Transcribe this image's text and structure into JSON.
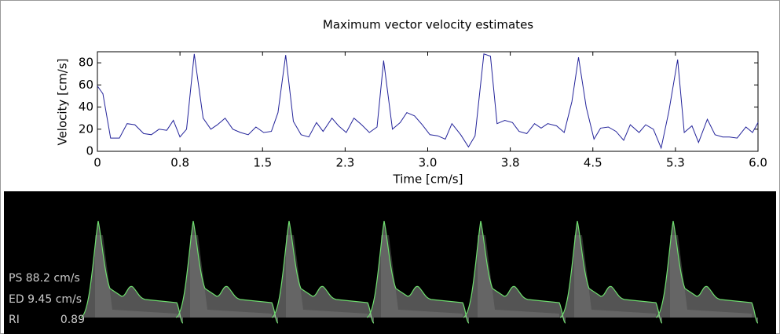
{
  "chart_data": {
    "type": "line",
    "title": "Maximum vector velocity estimates",
    "xlabel": "Time [cm/s]",
    "ylabel": "Velocity [cm/s]",
    "color": "#23239a",
    "x": [
      0,
      0.05,
      0.12,
      0.2,
      0.27,
      0.34,
      0.42,
      0.49,
      0.56,
      0.63,
      0.69,
      0.75,
      0.81,
      0.88,
      0.96,
      1.03,
      1.09,
      1.16,
      1.23,
      1.3,
      1.37,
      1.44,
      1.51,
      1.58,
      1.64,
      1.71,
      1.78,
      1.85,
      1.92,
      1.99,
      2.05,
      2.13,
      2.19,
      2.26,
      2.33,
      2.4,
      2.47,
      2.54,
      2.6,
      2.68,
      2.75,
      2.81,
      2.88,
      2.95,
      3.02,
      3.09,
      3.16,
      3.22,
      3.3,
      3.37,
      3.43,
      3.51,
      3.57,
      3.63,
      3.7,
      3.77,
      3.83,
      3.9,
      3.97,
      4.03,
      4.09,
      4.17,
      4.24,
      4.31,
      4.37,
      4.44,
      4.51,
      4.57,
      4.64,
      4.71,
      4.78,
      4.84,
      4.92,
      4.98,
      5.05,
      5.12,
      5.19,
      5.27,
      5.33,
      5.4,
      5.46,
      5.54,
      5.61,
      5.68,
      5.74,
      5.81,
      5.89,
      5.95,
      6.0
    ],
    "values": [
      59,
      52,
      12,
      12,
      25,
      24,
      16,
      15,
      20,
      19,
      28,
      13,
      20,
      88,
      30,
      20,
      24,
      30,
      20,
      17,
      15,
      22,
      17,
      18,
      35,
      87,
      27,
      15,
      13,
      26,
      18,
      30,
      23,
      17,
      30,
      24,
      17,
      22,
      82,
      20,
      26,
      35,
      32,
      24,
      15,
      14,
      11,
      25,
      15,
      4,
      14,
      88,
      86,
      25,
      28,
      26,
      18,
      16,
      25,
      21,
      25,
      23,
      17,
      45,
      85,
      40,
      11,
      21,
      22,
      18,
      10,
      24,
      17,
      24,
      20,
      3,
      36,
      83,
      17,
      23,
      8,
      29,
      15,
      13,
      13,
      12,
      22,
      17,
      26
    ],
    "xlim": [
      0,
      6
    ],
    "xticks": [
      0,
      {
        "value": 0.75,
        "label": "0.8"
      },
      1.5,
      {
        "value": 2.25,
        "label": "2.3"
      },
      {
        "value": 3,
        "label": "3.0"
      },
      {
        "value": 3.75,
        "label": "3.8"
      },
      4.5,
      {
        "value": 5.25,
        "label": "5.3"
      },
      {
        "value": 6,
        "label": "6.0"
      }
    ],
    "ylim": [
      0,
      90
    ],
    "yticks": [
      0,
      20,
      40,
      60,
      80
    ],
    "grid": false
  },
  "doppler_panel": {
    "ps": "PS 88.2 cm/s",
    "ed": "ED 9.45 cm/s",
    "ri_label": "RI",
    "ri_value": "0.89"
  }
}
